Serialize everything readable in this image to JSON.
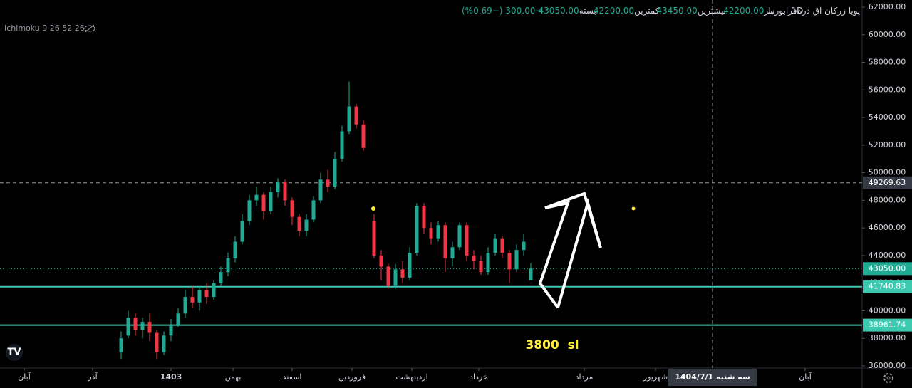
{
  "header": {
    "symbol": "پویا زرکان آق دره",
    "interval": "1D",
    "exchange": "فرابورس",
    "open_label": "باز",
    "open": "42200.00",
    "high_label": "بیشترین",
    "high": "43450.00",
    "low_label": "کمترین",
    "low": "42200.00",
    "close_label": "بسته",
    "close": "43050.00",
    "change": "−300.00 (−0.69%)",
    "indicator": "Ichimoku 9 26 52 26"
  },
  "chart_data": {
    "type": "candlestick",
    "up_color": "#22ab94",
    "down_color": "#f23645",
    "grid": false,
    "xlim": [
      0,
      242
    ],
    "ylim": [
      36000,
      62000
    ],
    "yticks": [
      {
        "value": 36000,
        "label": "36000.00"
      },
      {
        "value": 38000,
        "label": "38000.00"
      },
      {
        "value": 40000,
        "label": "40000.00"
      },
      {
        "value": 42000,
        "label": "42000.00"
      },
      {
        "value": 44000,
        "label": "44000.00"
      },
      {
        "value": 46000,
        "label": "46000.00"
      },
      {
        "value": 48000,
        "label": "48000.00"
      },
      {
        "value": 50000,
        "label": "50000.00"
      },
      {
        "value": 52000,
        "label": "52000.00"
      },
      {
        "value": 54000,
        "label": "54000.00"
      },
      {
        "value": 56000,
        "label": "56000.00"
      },
      {
        "value": 58000,
        "label": "58000.00"
      },
      {
        "value": 60000,
        "label": "60000.00"
      },
      {
        "value": 62000,
        "label": "62000.00"
      }
    ],
    "xticks": [
      {
        "value": 6.8,
        "label": "آبان"
      },
      {
        "value": 26,
        "label": "آذر"
      },
      {
        "value": 48,
        "label": "1403"
      },
      {
        "value": 65.4,
        "label": "بهمن"
      },
      {
        "value": 82,
        "label": "اسفند"
      },
      {
        "value": 98.8,
        "label": "فروردین"
      },
      {
        "value": 115.6,
        "label": "اردیبهشت"
      },
      {
        "value": 134.4,
        "label": "خرداد"
      },
      {
        "value": 164,
        "label": "مرداد"
      },
      {
        "value": 184,
        "label": "شهریور"
      },
      {
        "value": 226,
        "label": "آبان"
      }
    ],
    "crosshair": {
      "x": 200,
      "x_label": "سه شنبه 1404/7/1",
      "y": 49269.63
    },
    "levels": [
      {
        "value": 41740.83,
        "color": "#3cc9b0"
      },
      {
        "value": 38961.74,
        "color": "#3cc9b0"
      },
      {
        "value": 43050,
        "label": "43050.00",
        "color": "#22ab94"
      }
    ],
    "annotation": "3800  sl",
    "x": [
      34,
      36,
      38,
      40,
      42,
      44,
      46,
      48,
      50,
      52,
      54,
      56,
      58,
      60,
      62,
      64,
      66,
      68,
      70,
      72,
      74,
      76,
      78,
      80,
      82,
      84,
      86,
      88,
      90,
      92,
      94,
      96,
      98,
      100,
      102,
      105,
      107,
      109,
      111,
      113,
      115,
      117,
      119,
      121,
      123,
      125,
      127,
      129,
      131,
      133,
      135,
      137,
      139,
      141,
      143,
      145,
      147,
      149
    ],
    "open": [
      37000,
      38200,
      39500,
      38600,
      39200,
      38400,
      37000,
      38200,
      39000,
      39800,
      41000,
      40600,
      41500,
      41000,
      42000,
      42800,
      43800,
      45000,
      46500,
      48000,
      48400,
      47200,
      48600,
      49300,
      48000,
      46800,
      45800,
      46600,
      48000,
      49500,
      49000,
      51000,
      53000,
      54800,
      53500,
      46500,
      44000,
      43200,
      41800,
      43000,
      42400,
      44200,
      47600,
      46000,
      45200,
      46200,
      43800,
      44600,
      46200,
      44000,
      43600,
      42800,
      44200,
      45200,
      44200,
      43000,
      44400,
      42200
    ],
    "high": [
      38500,
      40000,
      39800,
      39500,
      39800,
      38600,
      38500,
      39400,
      40200,
      41500,
      41800,
      41800,
      42000,
      42200,
      43200,
      44200,
      45400,
      47000,
      48400,
      49000,
      48600,
      49000,
      49600,
      49500,
      48200,
      47000,
      47000,
      48300,
      50000,
      50200,
      51500,
      53400,
      56600,
      55000,
      53800,
      47000,
      44400,
      43400,
      43400,
      43600,
      44600,
      47800,
      47800,
      46400,
      46500,
      46400,
      45000,
      46400,
      46400,
      44400,
      44000,
      44600,
      45600,
      45400,
      44400,
      44800,
      45600,
      43450
    ],
    "low": [
      36500,
      38000,
      38200,
      38000,
      37800,
      36500,
      36800,
      37800,
      38800,
      39500,
      40200,
      40000,
      40500,
      40800,
      41800,
      42500,
      43500,
      44800,
      46200,
      47600,
      46600,
      47000,
      48200,
      47600,
      46200,
      45400,
      45400,
      46400,
      47800,
      48600,
      48800,
      50800,
      52800,
      53200,
      51600,
      43800,
      42200,
      41600,
      41600,
      42000,
      42200,
      44000,
      45600,
      44800,
      45000,
      42800,
      43200,
      44400,
      43600,
      43000,
      42600,
      42600,
      44000,
      43800,
      42000,
      42800,
      44000,
      42200
    ],
    "close": [
      38000,
      39500,
      38600,
      39200,
      38400,
      37000,
      38200,
      39000,
      39800,
      41000,
      40600,
      41500,
      41000,
      42000,
      42800,
      43800,
      45000,
      46500,
      48000,
      48400,
      47200,
      48600,
      49300,
      48000,
      46800,
      45800,
      46600,
      48000,
      49500,
      49000,
      51000,
      53000,
      54800,
      53500,
      51800,
      44000,
      43200,
      41800,
      43000,
      42400,
      44200,
      47600,
      46000,
      45200,
      46200,
      43800,
      44600,
      46200,
      44000,
      43600,
      42800,
      44200,
      45200,
      44200,
      43000,
      44400,
      45000,
      43050
    ]
  }
}
